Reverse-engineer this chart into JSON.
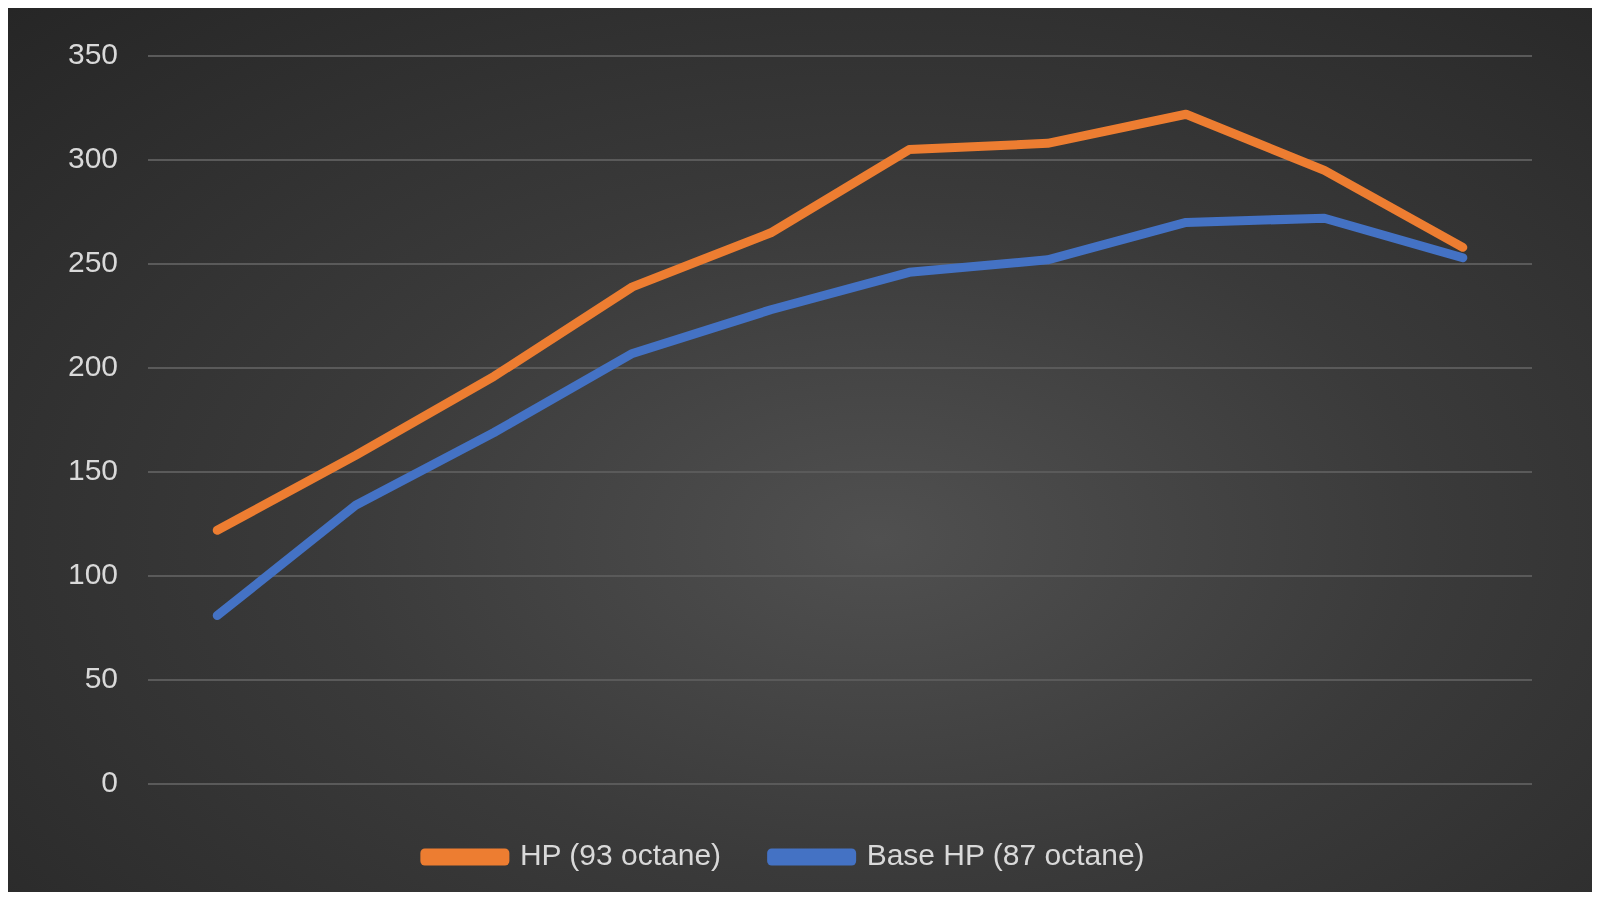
{
  "chart_data": {
    "type": "line",
    "categories": [
      null,
      null,
      null,
      null,
      null,
      null,
      null,
      null,
      null,
      null
    ],
    "series": [
      {
        "name": "HP (93 octane)",
        "color": "#ed7d31",
        "values": [
          122,
          158,
          196,
          239,
          265,
          305,
          308,
          322,
          295,
          258
        ]
      },
      {
        "name": "Base HP (87 octane)",
        "color": "#4472c4",
        "values": [
          81,
          134,
          169,
          207,
          228,
          246,
          252,
          270,
          272,
          253
        ]
      }
    ],
    "ylim": [
      0,
      350
    ],
    "yticks": [
      0,
      50,
      100,
      150,
      200,
      250,
      300,
      350
    ],
    "grid": "y",
    "legend": "bottom",
    "tick_labels": "y",
    "marker": "none",
    "line_style": "solid"
  }
}
